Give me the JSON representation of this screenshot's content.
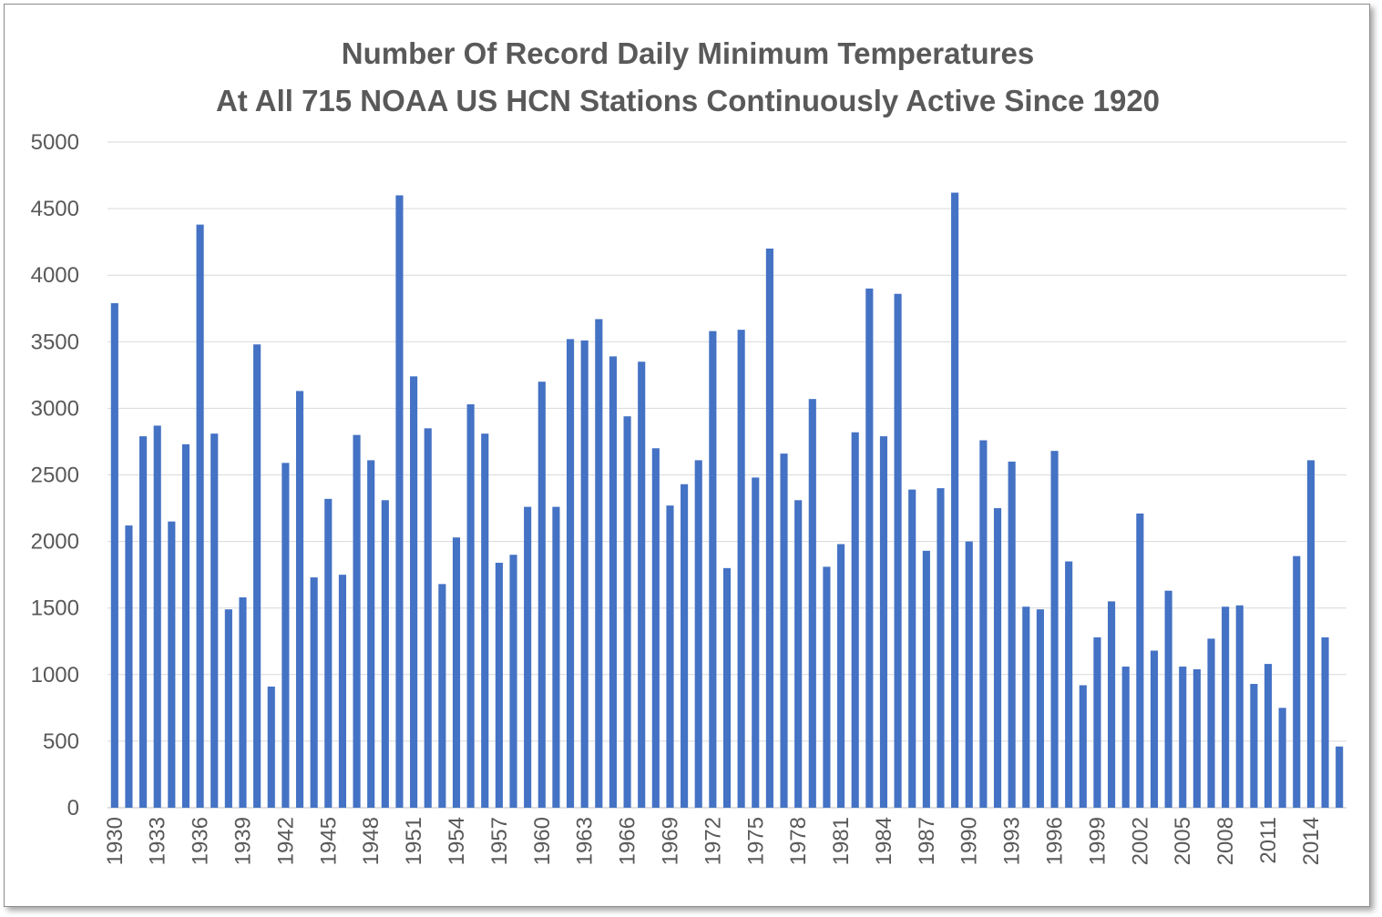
{
  "chart_data": {
    "type": "bar",
    "title": "Number Of Record Daily Minimum Temperatures",
    "subtitle": "At All 715 NOAA US HCN Stations Continuously Active Since 1920",
    "xlabel": "",
    "ylabel": "",
    "ylim": [
      0,
      5000
    ],
    "yticks": [
      "0",
      "500",
      "1000",
      "1500",
      "2000",
      "2500",
      "3000",
      "3500",
      "4000",
      "4500",
      "5000"
    ],
    "xticks": [
      "1930",
      "1933",
      "1936",
      "1939",
      "1942",
      "1945",
      "1948",
      "1951",
      "1954",
      "1957",
      "1960",
      "1963",
      "1966",
      "1969",
      "1972",
      "1975",
      "1978",
      "1981",
      "1984",
      "1987",
      "1990",
      "1993",
      "1996",
      "1999",
      "2002",
      "2005",
      "2008",
      "2011",
      "2014"
    ],
    "grid": true,
    "legend": "none",
    "bar_color": "#4472c4",
    "grid_color": "#d9d9d9",
    "categories": [
      1930,
      1931,
      1932,
      1933,
      1934,
      1935,
      1936,
      1937,
      1938,
      1939,
      1940,
      1941,
      1942,
      1943,
      1944,
      1945,
      1946,
      1947,
      1948,
      1949,
      1950,
      1951,
      1952,
      1953,
      1954,
      1955,
      1956,
      1957,
      1958,
      1959,
      1960,
      1961,
      1962,
      1963,
      1964,
      1965,
      1966,
      1967,
      1968,
      1969,
      1970,
      1971,
      1972,
      1973,
      1974,
      1975,
      1976,
      1977,
      1978,
      1979,
      1980,
      1981,
      1982,
      1983,
      1984,
      1985,
      1986,
      1987,
      1988,
      1989,
      1990,
      1991,
      1992,
      1993,
      1994,
      1995,
      1996,
      1997,
      1998,
      1999,
      2000,
      2001,
      2002,
      2003,
      2004,
      2005,
      2006,
      2007,
      2008,
      2009,
      2010,
      2011,
      2012,
      2013,
      2014,
      2015,
      2016
    ],
    "values": [
      3790,
      2120,
      2790,
      2870,
      2150,
      2730,
      4380,
      2810,
      1490,
      1580,
      3480,
      910,
      2590,
      3130,
      1730,
      2320,
      1750,
      2800,
      2610,
      2310,
      4600,
      3240,
      2850,
      1680,
      2030,
      3030,
      2810,
      1840,
      1900,
      2260,
      3200,
      2260,
      3520,
      3510,
      3670,
      3390,
      2940,
      3350,
      2700,
      2270,
      2430,
      2610,
      3580,
      1800,
      3590,
      2480,
      4200,
      2660,
      2310,
      3070,
      1810,
      1980,
      2820,
      3900,
      2790,
      3860,
      2390,
      1930,
      2400,
      4620,
      2000,
      2760,
      2250,
      2600,
      1510,
      1490,
      2680,
      1850,
      920,
      1280,
      1550,
      1060,
      2210,
      1180,
      1630,
      1060,
      1040,
      1270,
      1510,
      1520,
      930,
      1080,
      750,
      1890,
      2610,
      1280,
      460
    ]
  }
}
